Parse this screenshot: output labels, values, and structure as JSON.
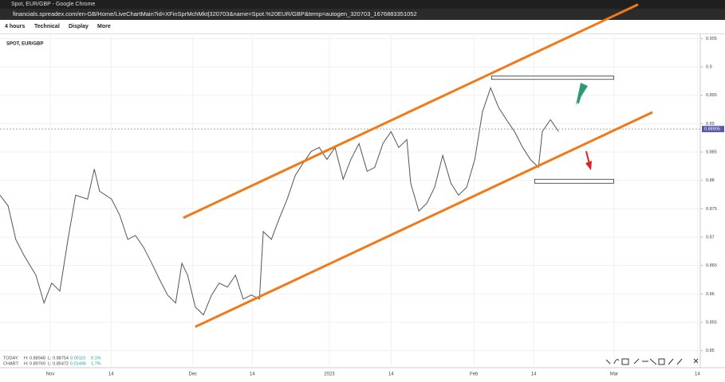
{
  "window": {
    "title": "Spot, EUR/GBP - Google Chrome",
    "url": "financials.spreadex.com/en-GB/Home/LiveChartMain?id=XFinSprMchMkt|320703&name=Spot.%20EUR/GBP&temp=autogen_320703_1676883351052"
  },
  "toolbar": [
    "4 hours",
    "Technical",
    "Display",
    "More"
  ],
  "stats": [
    {
      "label": "TODAY:",
      "high": "H: 0.88948",
      "low": "L: 0.88754",
      "change": "0.00110",
      "pct": "0.1%"
    },
    {
      "label": "CHART:",
      "high": "H: 0.89769",
      "low": "L: 0.85472",
      "change": "0.01496",
      "pct": "1.7%"
    }
  ],
  "chart_data": {
    "type": "line",
    "title": "SPOT, EUR/GBP",
    "xlim": [
      0,
      146.3
    ],
    "ylim": [
      0.847,
      0.9059
    ],
    "xticks": [
      {
        "value": 10.5,
        "label": "Nov"
      },
      {
        "value": 23.2,
        "label": "14"
      },
      {
        "value": 40.3,
        "label": "Dec"
      },
      {
        "value": 52.7,
        "label": "14"
      },
      {
        "value": 68.8,
        "label": "2023"
      },
      {
        "value": 81.7,
        "label": "14"
      },
      {
        "value": 99,
        "label": "Feb"
      },
      {
        "value": 111.5,
        "label": "14"
      },
      {
        "value": 128.3,
        "label": "Mar"
      },
      {
        "value": 145.7,
        "label": "14"
      }
    ],
    "yticks": [
      0.905,
      0.9,
      0.895,
      0.89,
      0.885,
      0.88,
      0.875,
      0.87,
      0.865,
      0.86,
      0.855,
      0.85
    ],
    "grid": true,
    "last_price": 0.88905,
    "series": [
      {
        "name": "EUR/GBP",
        "color": "#555555",
        "x": [
          0,
          1.7,
          3.3,
          5,
          7.5,
          9.2,
          10.8,
          12.5,
          14.2,
          15.8,
          18.3,
          19.7,
          20.8,
          23.3,
          25,
          26.7,
          28.3,
          30,
          31.7,
          33.3,
          35,
          36.7,
          38,
          39.2,
          40.8,
          42.5,
          44.2,
          45.8,
          47.5,
          49.2,
          50.8,
          52.5,
          54.2,
          55,
          56.7,
          58.3,
          60,
          61.7,
          63.3,
          65,
          66.7,
          68.3,
          70,
          71.7,
          73.3,
          75,
          76.7,
          78.3,
          80,
          81.7,
          83.3,
          85,
          85.8,
          87.5,
          89.2,
          90.8,
          92.5,
          94.2,
          95.8,
          97.5,
          99.2,
          100.8,
          102.5,
          104.2,
          105.8,
          107.5,
          109.2,
          110.8,
          112.5,
          113.3,
          115,
          116.7
        ],
        "values": [
          0.8774,
          0.8755,
          0.8696,
          0.8668,
          0.8633,
          0.8584,
          0.8619,
          0.8605,
          0.8696,
          0.8774,
          0.8767,
          0.882,
          0.8781,
          0.8767,
          0.8739,
          0.8696,
          0.8703,
          0.8682,
          0.8654,
          0.8626,
          0.8598,
          0.8584,
          0.8654,
          0.8633,
          0.8577,
          0.8563,
          0.8598,
          0.8619,
          0.8612,
          0.8633,
          0.8591,
          0.8598,
          0.8591,
          0.871,
          0.8696,
          0.8732,
          0.8767,
          0.8809,
          0.883,
          0.8851,
          0.8858,
          0.8837,
          0.8858,
          0.8802,
          0.8837,
          0.8865,
          0.8816,
          0.8823,
          0.8865,
          0.8886,
          0.8858,
          0.8872,
          0.8795,
          0.8746,
          0.876,
          0.8788,
          0.8844,
          0.8795,
          0.8774,
          0.8788,
          0.8837,
          0.8921,
          0.8963,
          0.8928,
          0.8907,
          0.8886,
          0.8858,
          0.8837,
          0.8823,
          0.8886,
          0.8907,
          0.8886
        ]
      }
    ],
    "trendlines": [
      {
        "color": "#f07a1a",
        "x": [
          38.3,
          133.3
        ],
        "y": [
          0.8734,
          0.911
        ]
      },
      {
        "color": "#f07a1a",
        "x": [
          40.8,
          136.3
        ],
        "y": [
          0.8542,
          0.892
        ]
      }
    ],
    "boxes": [
      {
        "x": [
          102.7,
          128.2
        ],
        "y": [
          0.8984,
          0.8978
        ]
      },
      {
        "x": [
          111.7,
          128.2
        ],
        "y": [
          0.8802,
          0.8795
        ]
      }
    ]
  }
}
